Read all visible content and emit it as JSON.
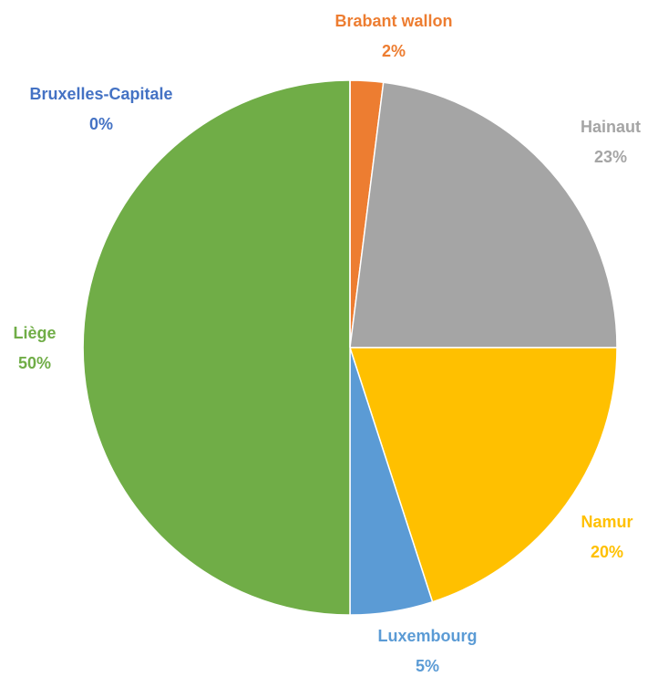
{
  "chart_data": {
    "type": "pie",
    "categories": [
      "Brabant wallon",
      "Hainaut",
      "Namur",
      "Luxembourg",
      "Liège",
      "Bruxelles-Capitale"
    ],
    "values": [
      2,
      23,
      20,
      5,
      50,
      0
    ],
    "value_labels": [
      "2%",
      "23%",
      "20%",
      "5%",
      "50%",
      "0%"
    ],
    "colors": [
      "#ed7d31",
      "#a5a5a5",
      "#ffc000",
      "#5b9bd5",
      "#70ad47",
      "#4472c4"
    ]
  }
}
